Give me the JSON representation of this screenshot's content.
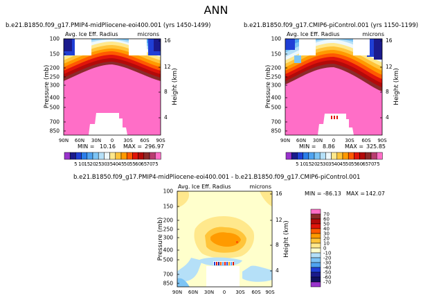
{
  "page_title": "ANN",
  "cb1": [
    {
      "c": "#9933cc",
      "t": ""
    },
    {
      "c": "#1a1a8c",
      "t": "5"
    },
    {
      "c": "#1f3fd6",
      "t": "10"
    },
    {
      "c": "#2a7de8",
      "t": "15"
    },
    {
      "c": "#4fa3f0",
      "t": "20"
    },
    {
      "c": "#7cc4f5",
      "t": "25"
    },
    {
      "c": "#b5e0f8",
      "t": "30"
    },
    {
      "c": "#eef8fc",
      "t": "35"
    },
    {
      "c": "#ffe88c",
      "t": "40"
    },
    {
      "c": "#ffc43a",
      "t": "45"
    },
    {
      "c": "#ff9a00",
      "t": "50"
    },
    {
      "c": "#ff5a00",
      "t": "55"
    },
    {
      "c": "#e0140a",
      "t": "60"
    },
    {
      "c": "#b30a0a",
      "t": "65"
    },
    {
      "c": "#8c2a2a",
      "t": "70"
    },
    {
      "c": "#b83c6e",
      "t": "75"
    },
    {
      "c": "#ff6ec7",
      "t": ""
    }
  ],
  "cb2": [
    {
      "c": "#ff6ec7",
      "t": "70"
    },
    {
      "c": "#8c2a2a",
      "t": "60"
    },
    {
      "c": "#b30a0a",
      "t": "50"
    },
    {
      "c": "#e0140a",
      "t": "40"
    },
    {
      "c": "#ff5a00",
      "t": "30"
    },
    {
      "c": "#ff9a00",
      "t": "20"
    },
    {
      "c": "#ffc43a",
      "t": "10"
    },
    {
      "c": "#ffe88c",
      "t": "0"
    },
    {
      "c": "#ffffcc",
      "t": "-10"
    },
    {
      "c": "#b5e0f8",
      "t": "-20"
    },
    {
      "c": "#7cc4f5",
      "t": "-30"
    },
    {
      "c": "#4fa3f0",
      "t": "-40"
    },
    {
      "c": "#1f3fd6",
      "t": "-50"
    },
    {
      "c": "#1a1a8c",
      "t": "-60"
    },
    {
      "c": "#101060",
      "t": "-70"
    },
    {
      "c": "#9933cc",
      "t": ""
    }
  ],
  "chart_data": [
    {
      "type": "heatmap",
      "title": "b.e21.B1850.f09_g17.PMIP4-midPliocene-eoi400.001 (yrs 1450-1499)",
      "subtitle_left": "Avg. Ice Eff. Radius",
      "units": "microns",
      "ylabel": "Pressure (mb)",
      "ylabel_right": "Height (km)",
      "x_ticks": [
        "90N",
        "60N",
        "30N",
        "0",
        "30S",
        "60S",
        "90S"
      ],
      "y_ticks": [
        "100",
        "150",
        "200",
        "250",
        "300",
        "400",
        "500",
        "700",
        "850"
      ],
      "y2_ticks": [
        "16",
        "12",
        "8",
        "4"
      ],
      "min_label": "MIN =",
      "min": "10.16",
      "max_label": "MAX =",
      "max": "296.97"
    },
    {
      "type": "heatmap",
      "title": "b.e21.B1850.f09_g17.CMIP6-piControl.001 (yrs 1150-1199)",
      "subtitle_left": "Avg. Ice Eff. Radius",
      "units": "microns",
      "ylabel": "Pressure (mb)",
      "ylabel_right": "Height (km)",
      "x_ticks": [
        "90N",
        "60N",
        "30N",
        "0",
        "30S",
        "60S",
        "90S"
      ],
      "y_ticks": [
        "100",
        "150",
        "200",
        "250",
        "300",
        "400",
        "500",
        "700",
        "850"
      ],
      "y2_ticks": [
        "16",
        "12",
        "8",
        "4"
      ],
      "min_label": "MIN =",
      "min": "8.86",
      "max_label": "MAX =",
      "max": "325.85"
    },
    {
      "type": "heatmap",
      "title": "b.e21.B1850.f09_g17.PMIP4-midPliocene-eoi400.001 - b.e21.B1850.f09_g17.CMIP6-piControl.001",
      "subtitle_left": "Avg. Ice Eff. Radius",
      "units": "microns",
      "ylabel": "Pressure (mb)",
      "ylabel_right": "Height (km)",
      "x_ticks": [
        "90N",
        "60N",
        "30N",
        "0",
        "30S",
        "60S",
        "90S"
      ],
      "y_ticks": [
        "100",
        "150",
        "200",
        "250",
        "300",
        "400",
        "500",
        "700",
        "850"
      ],
      "y2_ticks": [
        "16",
        "12",
        "8",
        "4"
      ],
      "min_label": "MIN =",
      "min": "-86.13",
      "max_label": "MAX =",
      "max": "142.07"
    }
  ]
}
